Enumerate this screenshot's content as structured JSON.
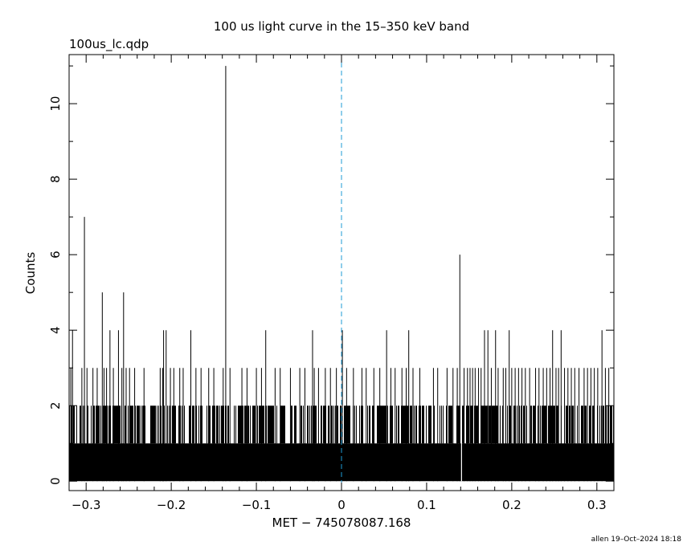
{
  "chart_data": {
    "type": "bar",
    "title": "100 us light curve in the 15–350 keV band",
    "subtitle": "100us_lc.qdp",
    "xlabel": "MET − 745078087.168",
    "ylabel": "Counts",
    "footer": "allen 19–Oct–2024 18:18",
    "xlim": [
      -0.32,
      0.32
    ],
    "ylim": [
      -0.25,
      11.3
    ],
    "x_ticks": [
      -0.3,
      -0.2,
      -0.1,
      0,
      0.1,
      0.2,
      0.3
    ],
    "x_tick_labels": [
      "−0.3",
      "−0.2",
      "−0.1",
      "0",
      "0.1",
      "0.2",
      "0.3"
    ],
    "y_ticks": [
      0,
      2,
      4,
      6,
      8,
      10
    ],
    "y_tick_labels": [
      "0",
      "2",
      "4",
      "6",
      "8",
      "10"
    ],
    "grid": false,
    "bin_width": 0.0001,
    "baseline_counts": 1,
    "bins_with_2_counts_fill": [
      -0.32,
      0.32
    ],
    "bins_with_zero_counts": [
      0.141
    ],
    "peaks": [
      {
        "x": -0.302,
        "y": 7
      },
      {
        "x": -0.316,
        "y": 4
      },
      {
        "x": -0.281,
        "y": 5
      },
      {
        "x": -0.272,
        "y": 4
      },
      {
        "x": -0.262,
        "y": 4
      },
      {
        "x": -0.256,
        "y": 5
      },
      {
        "x": -0.209,
        "y": 4
      },
      {
        "x": -0.206,
        "y": 4
      },
      {
        "x": -0.177,
        "y": 4
      },
      {
        "x": -0.136,
        "y": 11
      },
      {
        "x": -0.089,
        "y": 4
      },
      {
        "x": -0.034,
        "y": 4
      },
      {
        "x": 0.001,
        "y": 4
      },
      {
        "x": 0.053,
        "y": 4
      },
      {
        "x": 0.079,
        "y": 4
      },
      {
        "x": 0.139,
        "y": 6
      },
      {
        "x": 0.168,
        "y": 4
      },
      {
        "x": 0.172,
        "y": 4
      },
      {
        "x": 0.181,
        "y": 4
      },
      {
        "x": 0.197,
        "y": 4
      },
      {
        "x": 0.248,
        "y": 4
      },
      {
        "x": 0.258,
        "y": 4
      },
      {
        "x": 0.306,
        "y": 4
      }
    ],
    "bins_with_3_counts": [
      -0.318,
      -0.305,
      -0.299,
      -0.292,
      -0.287,
      -0.279,
      -0.276,
      -0.268,
      -0.258,
      -0.253,
      -0.249,
      -0.243,
      -0.232,
      -0.213,
      -0.21,
      -0.201,
      -0.197,
      -0.19,
      -0.186,
      -0.171,
      -0.165,
      -0.156,
      -0.15,
      -0.139,
      -0.131,
      -0.117,
      -0.111,
      -0.1,
      -0.094,
      -0.078,
      -0.072,
      -0.06,
      -0.049,
      -0.043,
      -0.032,
      -0.027,
      -0.019,
      -0.013,
      -0.006,
      0.006,
      0.014,
      0.024,
      0.029,
      0.038,
      0.045,
      0.058,
      0.063,
      0.071,
      0.076,
      0.084,
      0.092,
      0.108,
      0.113,
      0.124,
      0.131,
      0.136,
      0.144,
      0.148,
      0.151,
      0.154,
      0.157,
      0.161,
      0.164,
      0.176,
      0.184,
      0.19,
      0.193,
      0.2,
      0.204,
      0.208,
      0.212,
      0.216,
      0.221,
      0.228,
      0.232,
      0.237,
      0.241,
      0.245,
      0.252,
      0.255,
      0.262,
      0.266,
      0.27,
      0.274,
      0.279,
      0.285,
      0.289,
      0.293,
      0.297,
      0.301,
      0.31,
      0.314
    ],
    "trigger_marker": {
      "x": 0,
      "color": "#1e9bd6",
      "style": "dashed"
    },
    "colors": {
      "bars": "#000000",
      "axes": "#000000",
      "background": "#ffffff"
    }
  }
}
